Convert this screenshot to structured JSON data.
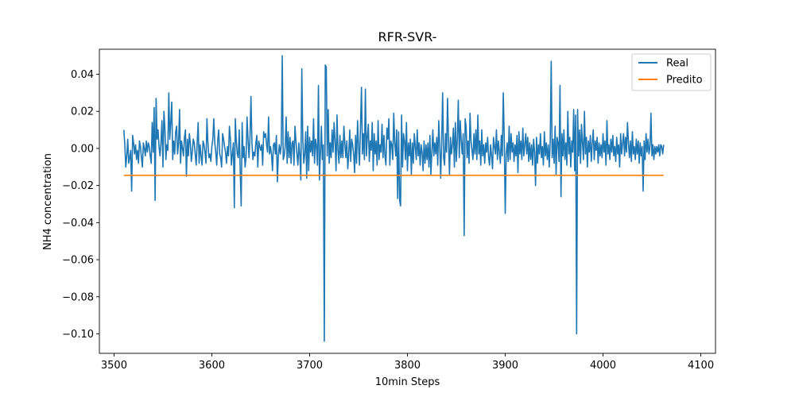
{
  "chart_data": {
    "type": "line",
    "title": "RFR-SVR-",
    "xlabel": "10min Steps",
    "ylabel": "NH4 concentration",
    "xlim": [
      3485,
      4115
    ],
    "ylim": [
      -0.1105,
      0.0535
    ],
    "xticks": [
      3500,
      3600,
      3700,
      3800,
      3900,
      4000,
      4100
    ],
    "xtick_labels": [
      "3500",
      "3600",
      "3700",
      "3800",
      "3900",
      "4000",
      "4100"
    ],
    "yticks": [
      0.04,
      0.02,
      0.0,
      -0.02,
      -0.04,
      -0.06,
      -0.08,
      -0.1
    ],
    "ytick_labels": [
      "0.04",
      "0.02",
      "0.00",
      "−0.02",
      "−0.04",
      "−0.06",
      "−0.08",
      "−0.10"
    ],
    "grid": false,
    "legend_position": "top-right",
    "x_start": 3510,
    "series": [
      {
        "name": "Real",
        "color": "#1f77b4",
        "values": [
          0.01,
          0.002,
          -0.01,
          -0.004,
          0.005,
          -0.008,
          -0.005,
          -0.001,
          -0.023,
          0.007,
          0.003,
          -0.003,
          0.002,
          -0.006,
          -0.001,
          -0.008,
          0.004,
          0.001,
          -0.005,
          -0.01,
          0.003,
          0.0,
          -0.004,
          0.004,
          -0.002,
          0.003,
          0.001,
          -0.004,
          -0.008,
          0.014,
          -0.002,
          0.022,
          -0.028,
          0.027,
          0.005,
          0.01,
          0.001,
          -0.004,
          0.003,
          0.015,
          -0.01,
          0.02,
          0.011,
          -0.006,
          0.002,
          -0.001,
          0.03,
          0.005,
          0.014,
          0.025,
          -0.006,
          0.004,
          -0.003,
          0.009,
          0.012,
          -0.003,
          0.003,
          0.021,
          -0.008,
          0.004,
          0.0,
          -0.004,
          0.006,
          0.01,
          -0.015,
          0.005,
          -0.004,
          0.008,
          0.003,
          -0.007,
          -0.002,
          0.005,
          0.003,
          -0.003,
          -0.009,
          0.003,
          0.014,
          -0.008,
          0.002,
          -0.004,
          -0.009,
          0.004,
          0.002,
          -0.002,
          -0.008,
          0.016,
          0.003,
          -0.005,
          -0.003,
          -0.007,
          0.001,
          0.005,
          0.016,
          0.003,
          -0.002,
          -0.009,
          0.004,
          0.01,
          -0.003,
          -0.005,
          -0.01,
          0.008,
          0.005,
          0.001,
          -0.002,
          -0.008,
          0.001,
          -0.004,
          0.012,
          0.005,
          -0.009,
          -0.003,
          0.003,
          -0.032,
          0.016,
          0.004,
          -0.003,
          -0.005,
          0.01,
          -0.012,
          -0.031,
          0.014,
          -0.005,
          0.001,
          -0.01,
          -0.005,
          0.017,
          0.005,
          -0.005,
          0.006,
          0.028,
          0.003,
          -0.006,
          -0.002,
          -0.004,
          0.003,
          0.007,
          -0.01,
          0.004,
          0.001,
          -0.001,
          0.002,
          -0.009,
          0.009,
          0.006,
          0.008,
          0.002,
          -0.002,
          0.017,
          -0.003,
          0.001,
          -0.003,
          -0.012,
          0.002,
          0.003,
          -0.003,
          0.007,
          -0.018,
          -0.004,
          0.002,
          -0.003,
          0.002,
          0.05,
          -0.006,
          -0.004,
          0.001,
          0.017,
          -0.008,
          0.009,
          -0.005,
          0.006,
          -0.008,
          0.003,
          0.004,
          -0.009,
          0.012,
          0.004,
          -0.003,
          -0.009,
          0.003,
          -0.004,
          -0.017,
          0.043,
          0.005,
          -0.008,
          -0.003,
          0.009,
          -0.016,
          0.012,
          -0.012,
          0.006,
          -0.002,
          0.004,
          -0.004,
          0.016,
          -0.008,
          0.005,
          0.001,
          -0.009,
          0.034,
          -0.017,
          -0.003,
          0.012,
          -0.006,
          0.002,
          -0.104,
          0.045,
          0.044,
          -0.004,
          0.021,
          -0.008,
          0.003,
          -0.005,
          0.01,
          -0.002,
          0.014,
          0.004,
          -0.012,
          0.018,
          -0.001,
          -0.008,
          0.007,
          -0.005,
          0.004,
          -0.005,
          0.012,
          0.003,
          -0.005,
          0.004,
          -0.011,
          -0.003,
          0.01,
          -0.007,
          0.005,
          0.002,
          -0.003,
          -0.013,
          0.007,
          -0.008,
          0.015,
          0.001,
          -0.009,
          0.012,
          0.033,
          -0.003,
          0.008,
          -0.006,
          0.032,
          -0.004,
          0.006,
          0.013,
          -0.007,
          0.004,
          -0.001,
          0.014,
          -0.012,
          0.008,
          -0.003,
          0.004,
          -0.009,
          0.015,
          -0.006,
          0.002,
          -0.002,
          0.013,
          -0.005,
          0.007,
          -0.004,
          -0.009,
          0.011,
          0.005,
          0.016,
          -0.009,
          0.004,
          0.002,
          -0.006,
          0.019,
          0.003,
          -0.004,
          0.01,
          -0.027,
          0.009,
          -0.028,
          -0.031,
          0.018,
          -0.01,
          0.008,
          0.004,
          -0.006,
          0.014,
          -0.012,
          0.003,
          -0.004,
          0.005,
          -0.014,
          0.003,
          -0.008,
          0.008,
          0.001,
          -0.006,
          0.01,
          -0.004,
          0.003,
          -0.009,
          0.002,
          -0.002,
          -0.012,
          0.004,
          -0.008,
          0.002,
          -0.006,
          0.003,
          -0.01,
          0.007,
          -0.014,
          -0.002,
          0.01,
          -0.004,
          0.003,
          -0.003,
          0.006,
          -0.009,
          0.015,
          0.002,
          -0.016,
          0.003,
          0.03,
          -0.005,
          -0.009,
          0.008,
          -0.002,
          0.027,
          0.004,
          -0.014,
          0.006,
          -0.003,
          0.002,
          0.011,
          -0.01,
          0.014,
          -0.007,
          0.005,
          0.026,
          -0.005,
          0.015,
          0.004,
          -0.003,
          0.008,
          -0.047,
          0.016,
          0.012,
          -0.005,
          0.004,
          -0.008,
          0.019,
          0.004,
          -0.001,
          -0.006,
          0.008,
          -0.003,
          0.01,
          -0.006,
          0.018,
          -0.003,
          0.004,
          -0.009,
          0.01,
          -0.004,
          0.002,
          -0.008,
          0.003,
          -0.002,
          0.006,
          -0.005,
          -0.009,
          0.002,
          -0.004,
          -0.011,
          0.006,
          0.001,
          -0.003,
          0.01,
          -0.006,
          0.004,
          -0.002,
          -0.008,
          0.007,
          -0.004,
          0.03,
          0.005,
          -0.035,
          -0.003,
          0.003,
          -0.007,
          0.012,
          -0.006,
          0.008,
          -0.002,
          0.003,
          -0.007,
          0.002,
          -0.004,
          0.007,
          -0.013,
          0.009,
          -0.003,
          0.004,
          -0.006,
          0.011,
          -0.004,
          0.002,
          0.008,
          -0.003,
          0.006,
          -0.007,
          0.003,
          -0.006,
          0.002,
          -0.009,
          0.005,
          -0.002,
          -0.02,
          0.006,
          -0.008,
          0.002,
          -0.003,
          0.008,
          -0.005,
          0.001,
          -0.009,
          0.009,
          -0.004,
          0.003,
          -0.006,
          0.002,
          -0.01,
          0.004,
          0.047,
          -0.005,
          0.005,
          -0.008,
          0.012,
          -0.014,
          0.006,
          0.003,
          -0.007,
          0.034,
          -0.026,
          0.008,
          -0.004,
          0.01,
          -0.006,
          0.003,
          -0.009,
          0.02,
          -0.003,
          0.006,
          -0.01,
          0.004,
          -0.002,
          0.021,
          -0.012,
          0.018,
          -0.1,
          0.021,
          -0.004,
          0.01,
          -0.008,
          0.013,
          0.003,
          -0.006,
          0.02,
          -0.003,
          0.006,
          -0.01,
          0.004,
          -0.002,
          0.007,
          -0.007,
          0.003,
          0.01,
          -0.006,
          0.004,
          -0.001,
          0.006,
          -0.008,
          0.003,
          -0.004,
          0.002,
          -0.005,
          0.008,
          -0.002,
          0.004,
          -0.009,
          0.015,
          -0.003,
          0.002,
          -0.006,
          0.005,
          -0.002,
          0.007,
          -0.004,
          0.001,
          -0.007,
          0.006,
          -0.003,
          0.002,
          -0.01,
          0.008,
          -0.003,
          0.003,
          0.008,
          -0.004,
          0.006,
          -0.002,
          0.014,
          0.003,
          -0.005,
          0.004,
          -0.007,
          0.009,
          -0.003,
          0.001,
          -0.006,
          0.005,
          -0.003,
          0.004,
          -0.008,
          0.003,
          -0.004,
          0.001,
          -0.023,
          0.004,
          -0.006,
          0.008,
          -0.002,
          0.005,
          -0.003,
          0.001,
          0.019,
          -0.004,
          0.002,
          -0.006,
          0.001,
          -0.003,
          0.001,
          -0.002,
          0.002,
          -0.004,
          0.002,
          0.001,
          -0.003,
          0.002
        ]
      },
      {
        "name": "Predito",
        "color": "#ff7f0e",
        "values": [
          -0.0145,
          -0.0145
        ]
      }
    ]
  }
}
